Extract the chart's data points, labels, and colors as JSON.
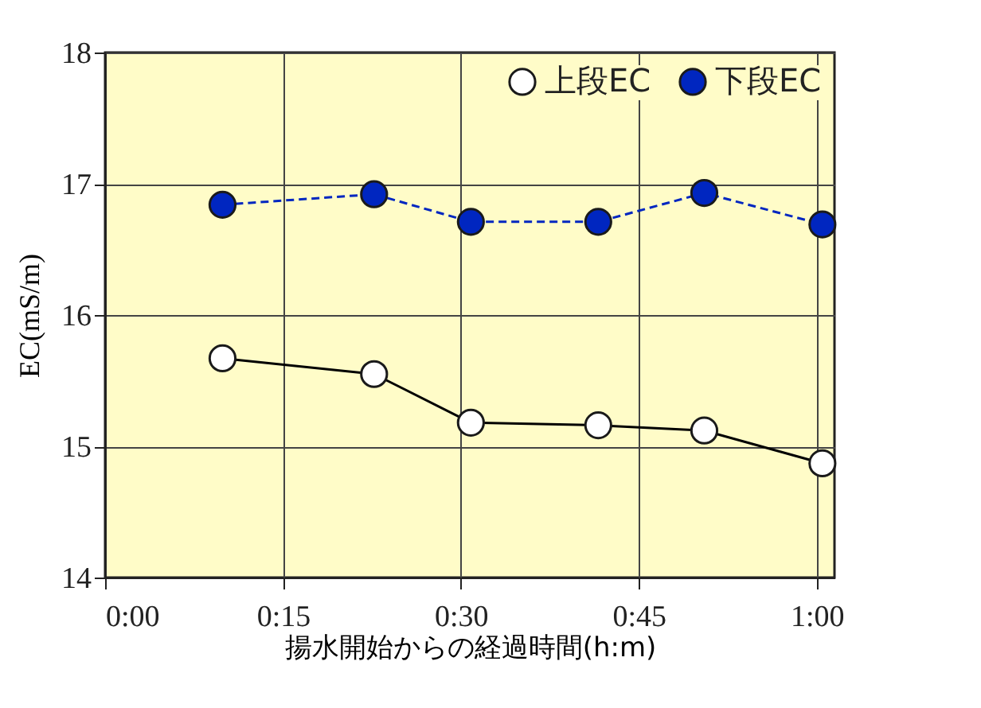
{
  "chart_data": {
    "type": "line",
    "xlabel": "揚水開始からの経過時間(h:m)",
    "ylabel": "EC(mS/m)",
    "xlim": [
      0,
      1.025
    ],
    "xticks": [
      {
        "value": 0,
        "label": "0:00"
      },
      {
        "value": 0.25,
        "label": "0:15"
      },
      {
        "value": 0.5,
        "label": "0:30"
      },
      {
        "value": 0.75,
        "label": "0:45"
      },
      {
        "value": 1,
        "label": "1:00"
      }
    ],
    "ylim": [
      14,
      18
    ],
    "yticks": [
      14,
      15,
      16,
      17,
      18
    ],
    "grid": true,
    "legend": "top right",
    "marker": "circle",
    "series": [
      {
        "name": "上段EC",
        "color": "#000000",
        "line_style": "solid",
        "x": [
          0.165,
          0.378,
          0.514,
          0.693,
          0.842,
          1.008
        ],
        "values": [
          15.67,
          15.55,
          15.18,
          15.16,
          15.12,
          14.87
        ]
      },
      {
        "name": "下段EC",
        "color": "#0026c0",
        "line_style": "dashed",
        "x": [
          0.165,
          0.378,
          0.514,
          0.693,
          0.842,
          1.008
        ],
        "values": [
          16.84,
          16.92,
          16.71,
          16.71,
          16.93,
          16.69
        ]
      }
    ]
  }
}
